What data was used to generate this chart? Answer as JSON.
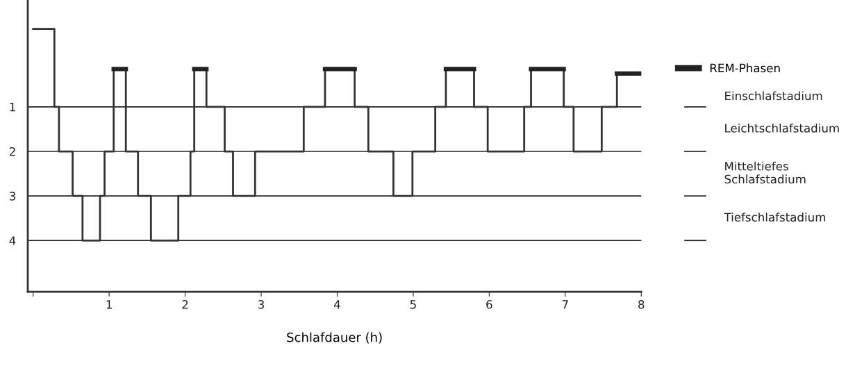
{
  "chart_data": {
    "type": "step",
    "xlabel": "Schlafdauer (h)",
    "x": [
      0.0,
      0.28,
      0.34,
      0.52,
      0.65,
      0.88,
      0.94,
      1.06,
      1.22,
      1.38,
      1.55,
      1.91,
      2.07,
      2.12,
      2.28,
      2.52,
      2.63,
      2.92,
      3.56,
      3.84,
      4.23,
      4.41,
      4.74,
      4.99,
      5.29,
      5.43,
      5.8,
      5.98,
      6.46,
      6.55,
      6.98,
      7.11,
      7.48,
      7.68,
      8.0
    ],
    "series": [
      {
        "color": "#333333",
        "values": [
          -0.75,
          1,
          2,
          3,
          4,
          3,
          2,
          0.15,
          2,
          3,
          4,
          3,
          2,
          0.15,
          1,
          2,
          3,
          2,
          1,
          0.15,
          1,
          2,
          3,
          2,
          1,
          0.15,
          1,
          2,
          1,
          0.15,
          1,
          2,
          1,
          0.25,
          0.25
        ]
      },
      {
        "name": "REM-Phasen",
        "color": "#222222",
        "values": [
          null,
          null,
          null,
          null,
          null,
          null,
          null,
          0.15,
          null,
          null,
          null,
          null,
          null,
          0.15,
          null,
          null,
          null,
          null,
          null,
          0.15,
          null,
          null,
          null,
          null,
          null,
          0.15,
          null,
          null,
          null,
          0.15,
          null,
          null,
          null,
          0.25,
          0.25
        ]
      }
    ],
    "xlim": [
      -0.07,
      8
    ],
    "xticks": [
      {
        "value": 0,
        "label": null
      },
      1,
      2,
      3,
      4,
      5,
      6,
      7,
      8
    ],
    "ylim": [
      5.15,
      -1.4
    ],
    "yticks": [
      1,
      2,
      3,
      4
    ],
    "grid": "y",
    "legend": "right",
    "annotations": [
      "Einschlafstadium",
      "Leichtschlafstadium",
      "Mitteltiefes\nSchlafstadium",
      "Tiefschlafstadium"
    ]
  }
}
